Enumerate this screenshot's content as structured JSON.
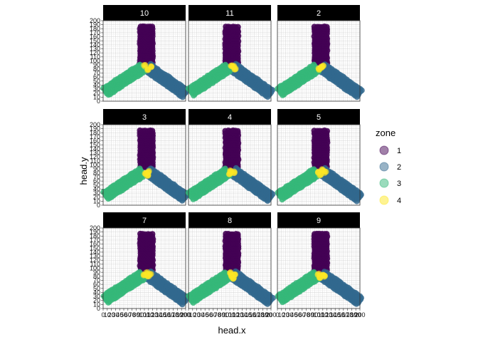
{
  "chart_data": {
    "type": "scatter",
    "facet_by": "trial",
    "facets": [
      "10",
      "11",
      "2",
      "3",
      "4",
      "5",
      "7",
      "8",
      "9"
    ],
    "xlabel": "head.x",
    "ylabel": "head.y",
    "xlim": [
      0,
      200
    ],
    "ylim": [
      0,
      200
    ],
    "x_ticks": [
      0,
      10,
      20,
      30,
      40,
      50,
      60,
      70,
      80,
      90,
      100,
      110,
      120,
      130,
      140,
      150,
      160,
      170,
      180,
      190,
      200
    ],
    "y_ticks": [
      0,
      10,
      20,
      30,
      40,
      50,
      60,
      70,
      80,
      90,
      100,
      110,
      120,
      130,
      140,
      150,
      160,
      170,
      180,
      190,
      200
    ],
    "y_tick_labels": [
      "0",
      "10",
      "20",
      "30",
      "40",
      "50",
      "60",
      "70",
      "80",
      "90",
      "100",
      "110",
      "120",
      "130",
      "140",
      "150",
      "160",
      "170",
      "180",
      "190",
      "200"
    ],
    "x_tick_labels": [
      "0",
      "10",
      "20",
      "30",
      "40",
      "50",
      "60",
      "70",
      "80",
      "90",
      "100",
      "110",
      "120",
      "130",
      "140",
      "150",
      "160",
      "170",
      "180",
      "190",
      "200"
    ],
    "grid": true,
    "legend": {
      "title": "zone",
      "position": "right",
      "entries": [
        "1",
        "2",
        "3",
        "4"
      ]
    },
    "series": [
      {
        "name": "1",
        "color": "#440154",
        "region": "vertical arm",
        "x_range": [
          90,
          120
        ],
        "y_range": [
          95,
          185
        ]
      },
      {
        "name": "2",
        "color": "#31688E",
        "region": "lower-right arm",
        "from": [
          110,
          85
        ],
        "to": [
          200,
          20
        ]
      },
      {
        "name": "3",
        "color": "#35B779",
        "region": "lower-left arm",
        "from": [
          95,
          80
        ],
        "to": [
          5,
          20
        ]
      },
      {
        "name": "4",
        "color": "#FDE725",
        "region": "center",
        "center": [
          105,
          82
        ]
      }
    ],
    "zone4_centers": {
      "10": [
        [
          100,
          88
        ],
        [
          115,
          85
        ],
        [
          108,
          78
        ]
      ],
      "11": [
        [
          108,
          85
        ],
        [
          113,
          80
        ],
        [
          104,
          87
        ]
      ],
      "2": [
        [
          100,
          80
        ],
        [
          110,
          88
        ],
        [
          106,
          84
        ]
      ],
      "3": [
        [
          103,
          80
        ],
        [
          108,
          74
        ],
        [
          110,
          83
        ]
      ],
      "4": [
        [
          103,
          85
        ],
        [
          110,
          82
        ],
        [
          100,
          78
        ]
      ],
      "5": [
        [
          100,
          82
        ],
        [
          110,
          88
        ],
        [
          104,
          76
        ],
        [
          116,
          82
        ]
      ],
      "7": [
        [
          100,
          84
        ],
        [
          110,
          80
        ],
        [
          106,
          88
        ],
        [
          114,
          85
        ]
      ],
      "8": [
        [
          104,
          80
        ],
        [
          112,
          86
        ],
        [
          100,
          88
        ],
        [
          108,
          74
        ]
      ],
      "9": [
        [
          104,
          78
        ],
        [
          110,
          84
        ],
        [
          100,
          86
        ],
        [
          115,
          80
        ]
      ]
    }
  }
}
